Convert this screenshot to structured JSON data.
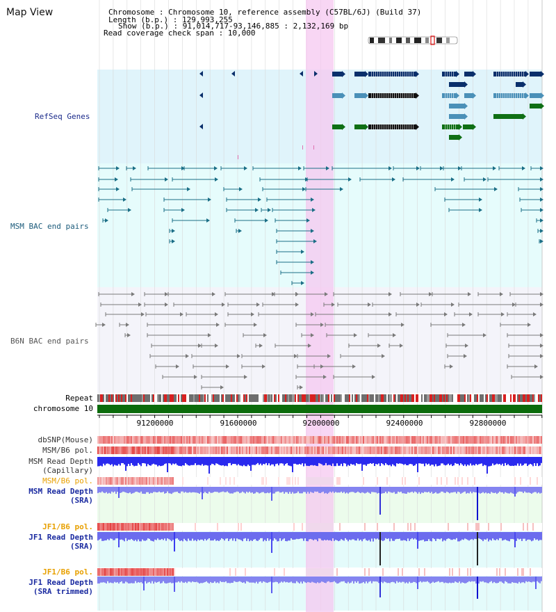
{
  "view_title": "Map View",
  "info": {
    "line1": "Chromosome    : Chromosome 10, reference assembly (C57BL/6J) (Build 37)",
    "line2": "Length (b.p.) : 129,993,255",
    "line3": "Show (b.p.) : 91,014,717-93,146,885 : 2,132,169 bp",
    "line4": "Read coverage check span : 10,000"
  },
  "tracks": {
    "refseq": "RefSeq Genes",
    "msm_bac": "MSM BAC end pairs",
    "b6n_bac": "B6N BAC end pairs",
    "repeat": "Repeat",
    "chromosome": "chromosome 10",
    "dbsnp": "dbSNP(Mouse)",
    "msm_b6_pol_1": "MSM/B6 pol.",
    "msm_depth_cap_1": "MSM Read Depth",
    "msm_depth_cap_2": "(Capillary)",
    "msm_b6_pol_2": "MSM/B6 pol.",
    "msm_depth_sra_1": "MSM Read Depth",
    "msm_depth_sra_2": "(SRA)",
    "jf1_b6_pol_1": "JF1/B6 pol.",
    "jf1_depth_sra_1": "JF1 Read Depth",
    "jf1_depth_sra_2": "(SRA)",
    "jf1_b6_pol_2": "JF1/B6 pol.",
    "jf1_depth_trim_1": "JF1 Read Depth",
    "jf1_depth_trim_2": "(SRA trimmed)"
  },
  "axis": {
    "ticks": [
      "91200000",
      "91600000",
      "92000000",
      "92400000",
      "92800000"
    ]
  },
  "colors": {
    "refseq_bg": "#e0f4fb",
    "msm_bg": "#e6fcfc",
    "b6n_bg": "#f4f4fa",
    "highlight": "#f5c8f0",
    "gene_dark": "#0a2f6b",
    "gene_mid": "#4a90b8",
    "gene_green": "#0f6f14",
    "msm_pair": "#1a6e86",
    "b6n_pair": "#7a7a7a",
    "chromosome_bar": "#0b6b0b",
    "depth_blue": "#2a2aee",
    "depth_light": "#8484f0",
    "label_navy": "#1a2a8a",
    "label_orange": "#e8a000"
  }
}
